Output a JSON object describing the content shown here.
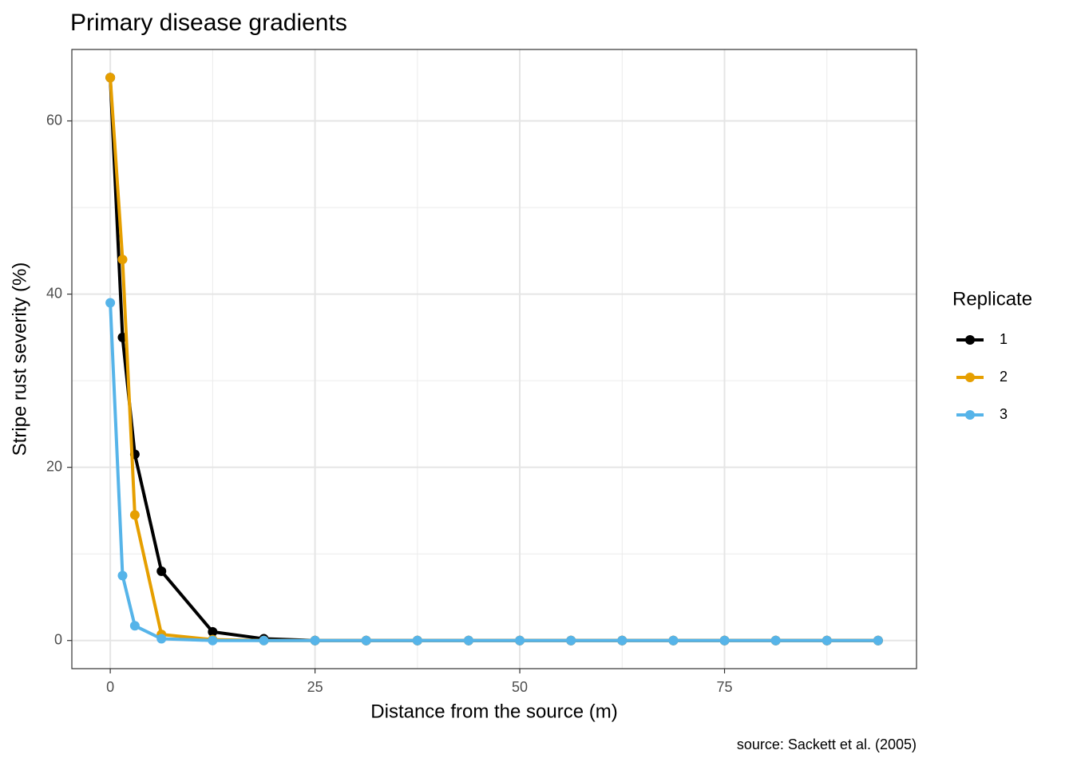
{
  "chart_data": {
    "type": "line",
    "title": "Primary disease gradients",
    "xlabel": "Distance from the source (m)",
    "ylabel": "Stripe rust severity (%)",
    "caption": "source: Sackett et al. (2005)",
    "legend_title": "Replicate",
    "legend": "right",
    "grid": true,
    "x": [
      0,
      1.5,
      3,
      6.25,
      12.5,
      18.75,
      25,
      31.25,
      37.5,
      43.75,
      50,
      56.25,
      62.5,
      68.75,
      75,
      81.25,
      87.5,
      93.75
    ],
    "xlim": [
      -4.69,
      98.44
    ],
    "xticks": [
      0,
      25,
      50,
      75
    ],
    "xminor": [
      12.5,
      37.5,
      62.5,
      87.5
    ],
    "ylim": [
      -3.25,
      68.25
    ],
    "yticks": [
      0,
      20,
      40,
      60
    ],
    "yminor": [
      10,
      30,
      50
    ],
    "series": [
      {
        "name": "1",
        "color": "#000000",
        "values": [
          65,
          35,
          21.5,
          8,
          1,
          0.2,
          0,
          0,
          0,
          0,
          0,
          0,
          0,
          0,
          0,
          0,
          0,
          0
        ]
      },
      {
        "name": "2",
        "color": "#E69F00",
        "values": [
          65,
          44,
          14.5,
          0.7,
          0.1,
          0,
          0,
          0,
          0,
          0,
          0,
          0,
          0,
          0,
          0,
          0,
          0,
          0
        ]
      },
      {
        "name": "3",
        "color": "#56B4E9",
        "values": [
          39,
          7.5,
          1.7,
          0.2,
          0,
          0,
          0,
          0,
          0,
          0,
          0,
          0,
          0,
          0,
          0,
          0,
          0,
          0
        ]
      }
    ]
  }
}
